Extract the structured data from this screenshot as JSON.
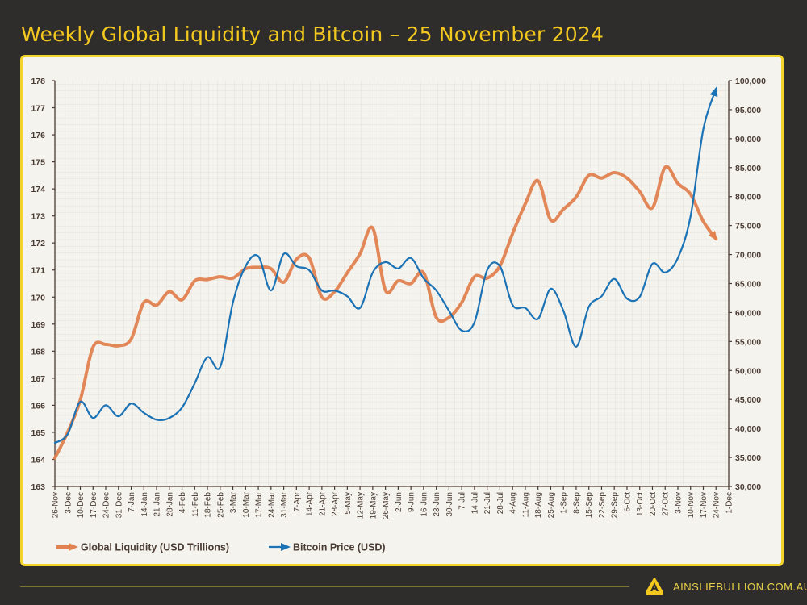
{
  "chart_data": {
    "type": "line",
    "title": "Weekly Global Liquidity and Bitcoin – 25 November 2024",
    "x_tick_labels": [
      "26-Nov",
      "3-Dec",
      "10-Dec",
      "17-Dec",
      "24-Dec",
      "31-Dec",
      "7-Jan",
      "14-Jan",
      "21-Jan",
      "28-Jan",
      "4-Feb",
      "11-Feb",
      "18-Feb",
      "25-Feb",
      "3-Mar",
      "10-Mar",
      "17-Mar",
      "24-Mar",
      "31-Mar",
      "7-Apr",
      "14-Apr",
      "21-Apr",
      "28-Apr",
      "5-May",
      "12-May",
      "19-May",
      "26-May",
      "2-Jun",
      "9-Jun",
      "16-Jun",
      "23-Jun",
      "30-Jun",
      "7-Jul",
      "14-Jul",
      "21-Jul",
      "28-Jul",
      "4-Aug",
      "11-Aug",
      "18-Aug",
      "25-Aug",
      "1-Sep",
      "8-Sep",
      "15-Sep",
      "22-Sep",
      "29-Sep",
      "6-Oct",
      "13-Oct",
      "20-Oct",
      "27-Oct",
      "3-Nov",
      "10-Nov",
      "17-Nov",
      "24-Nov",
      "1-Dec"
    ],
    "y_left": {
      "range": [
        163,
        178
      ],
      "ticks": [
        "163",
        "164",
        "165",
        "166",
        "167",
        "168",
        "169",
        "170",
        "171",
        "172",
        "173",
        "174",
        "175",
        "176",
        "177",
        "178"
      ]
    },
    "y_right": {
      "range": [
        30000,
        100000
      ],
      "ticks": [
        "30,000",
        "35,000",
        "40,000",
        "45,000",
        "50,000",
        "55,000",
        "60,000",
        "65,000",
        "70,000",
        "75,000",
        "80,000",
        "85,000",
        "90,000",
        "95,000",
        "100,000"
      ]
    },
    "grid": true,
    "legend_position": "bottom-left",
    "series": [
      {
        "name": "Global Liquidity (USD Trillions)",
        "axis": "left",
        "color": "#e0814f",
        "values": [
          164.05,
          165.0,
          166.2,
          168.15,
          168.25,
          168.2,
          168.45,
          169.8,
          169.7,
          170.2,
          169.9,
          170.6,
          170.65,
          170.75,
          170.7,
          171.05,
          171.1,
          171.05,
          170.55,
          171.4,
          171.45,
          170.0,
          170.2,
          170.9,
          171.6,
          172.55,
          170.25,
          170.6,
          170.5,
          170.9,
          169.25,
          169.25,
          169.8,
          170.75,
          170.7,
          171.15,
          172.35,
          173.45,
          174.3,
          172.85,
          173.25,
          173.7,
          174.5,
          174.4,
          174.6,
          174.4,
          173.9,
          173.3,
          174.8,
          174.2,
          173.8,
          172.8,
          172.15
        ]
      },
      {
        "name": "Bitcoin Price (USD)",
        "axis": "right",
        "color": "#1b72b5",
        "values": [
          37500,
          39000,
          44600,
          41800,
          44000,
          42100,
          44300,
          42700,
          41500,
          41800,
          43600,
          47800,
          52300,
          50600,
          61700,
          68000,
          69700,
          63800,
          70100,
          68000,
          67300,
          63800,
          63800,
          62800,
          60800,
          66900,
          68700,
          67600,
          69400,
          65900,
          63800,
          60300,
          56900,
          58300,
          67300,
          68000,
          61300,
          60800,
          58900,
          64100,
          60300,
          54100,
          61000,
          62800,
          65800,
          62400,
          62700,
          68400,
          66900,
          69400,
          76600,
          91600,
          98600
        ]
      }
    ]
  },
  "footer": {
    "brand": "AINSLIEBULLION.COM.AU",
    "logo_letter": "A"
  },
  "colors": {
    "background": "#2e2d2c",
    "accent": "#f3c81f",
    "panel": "#f4f3ee"
  }
}
